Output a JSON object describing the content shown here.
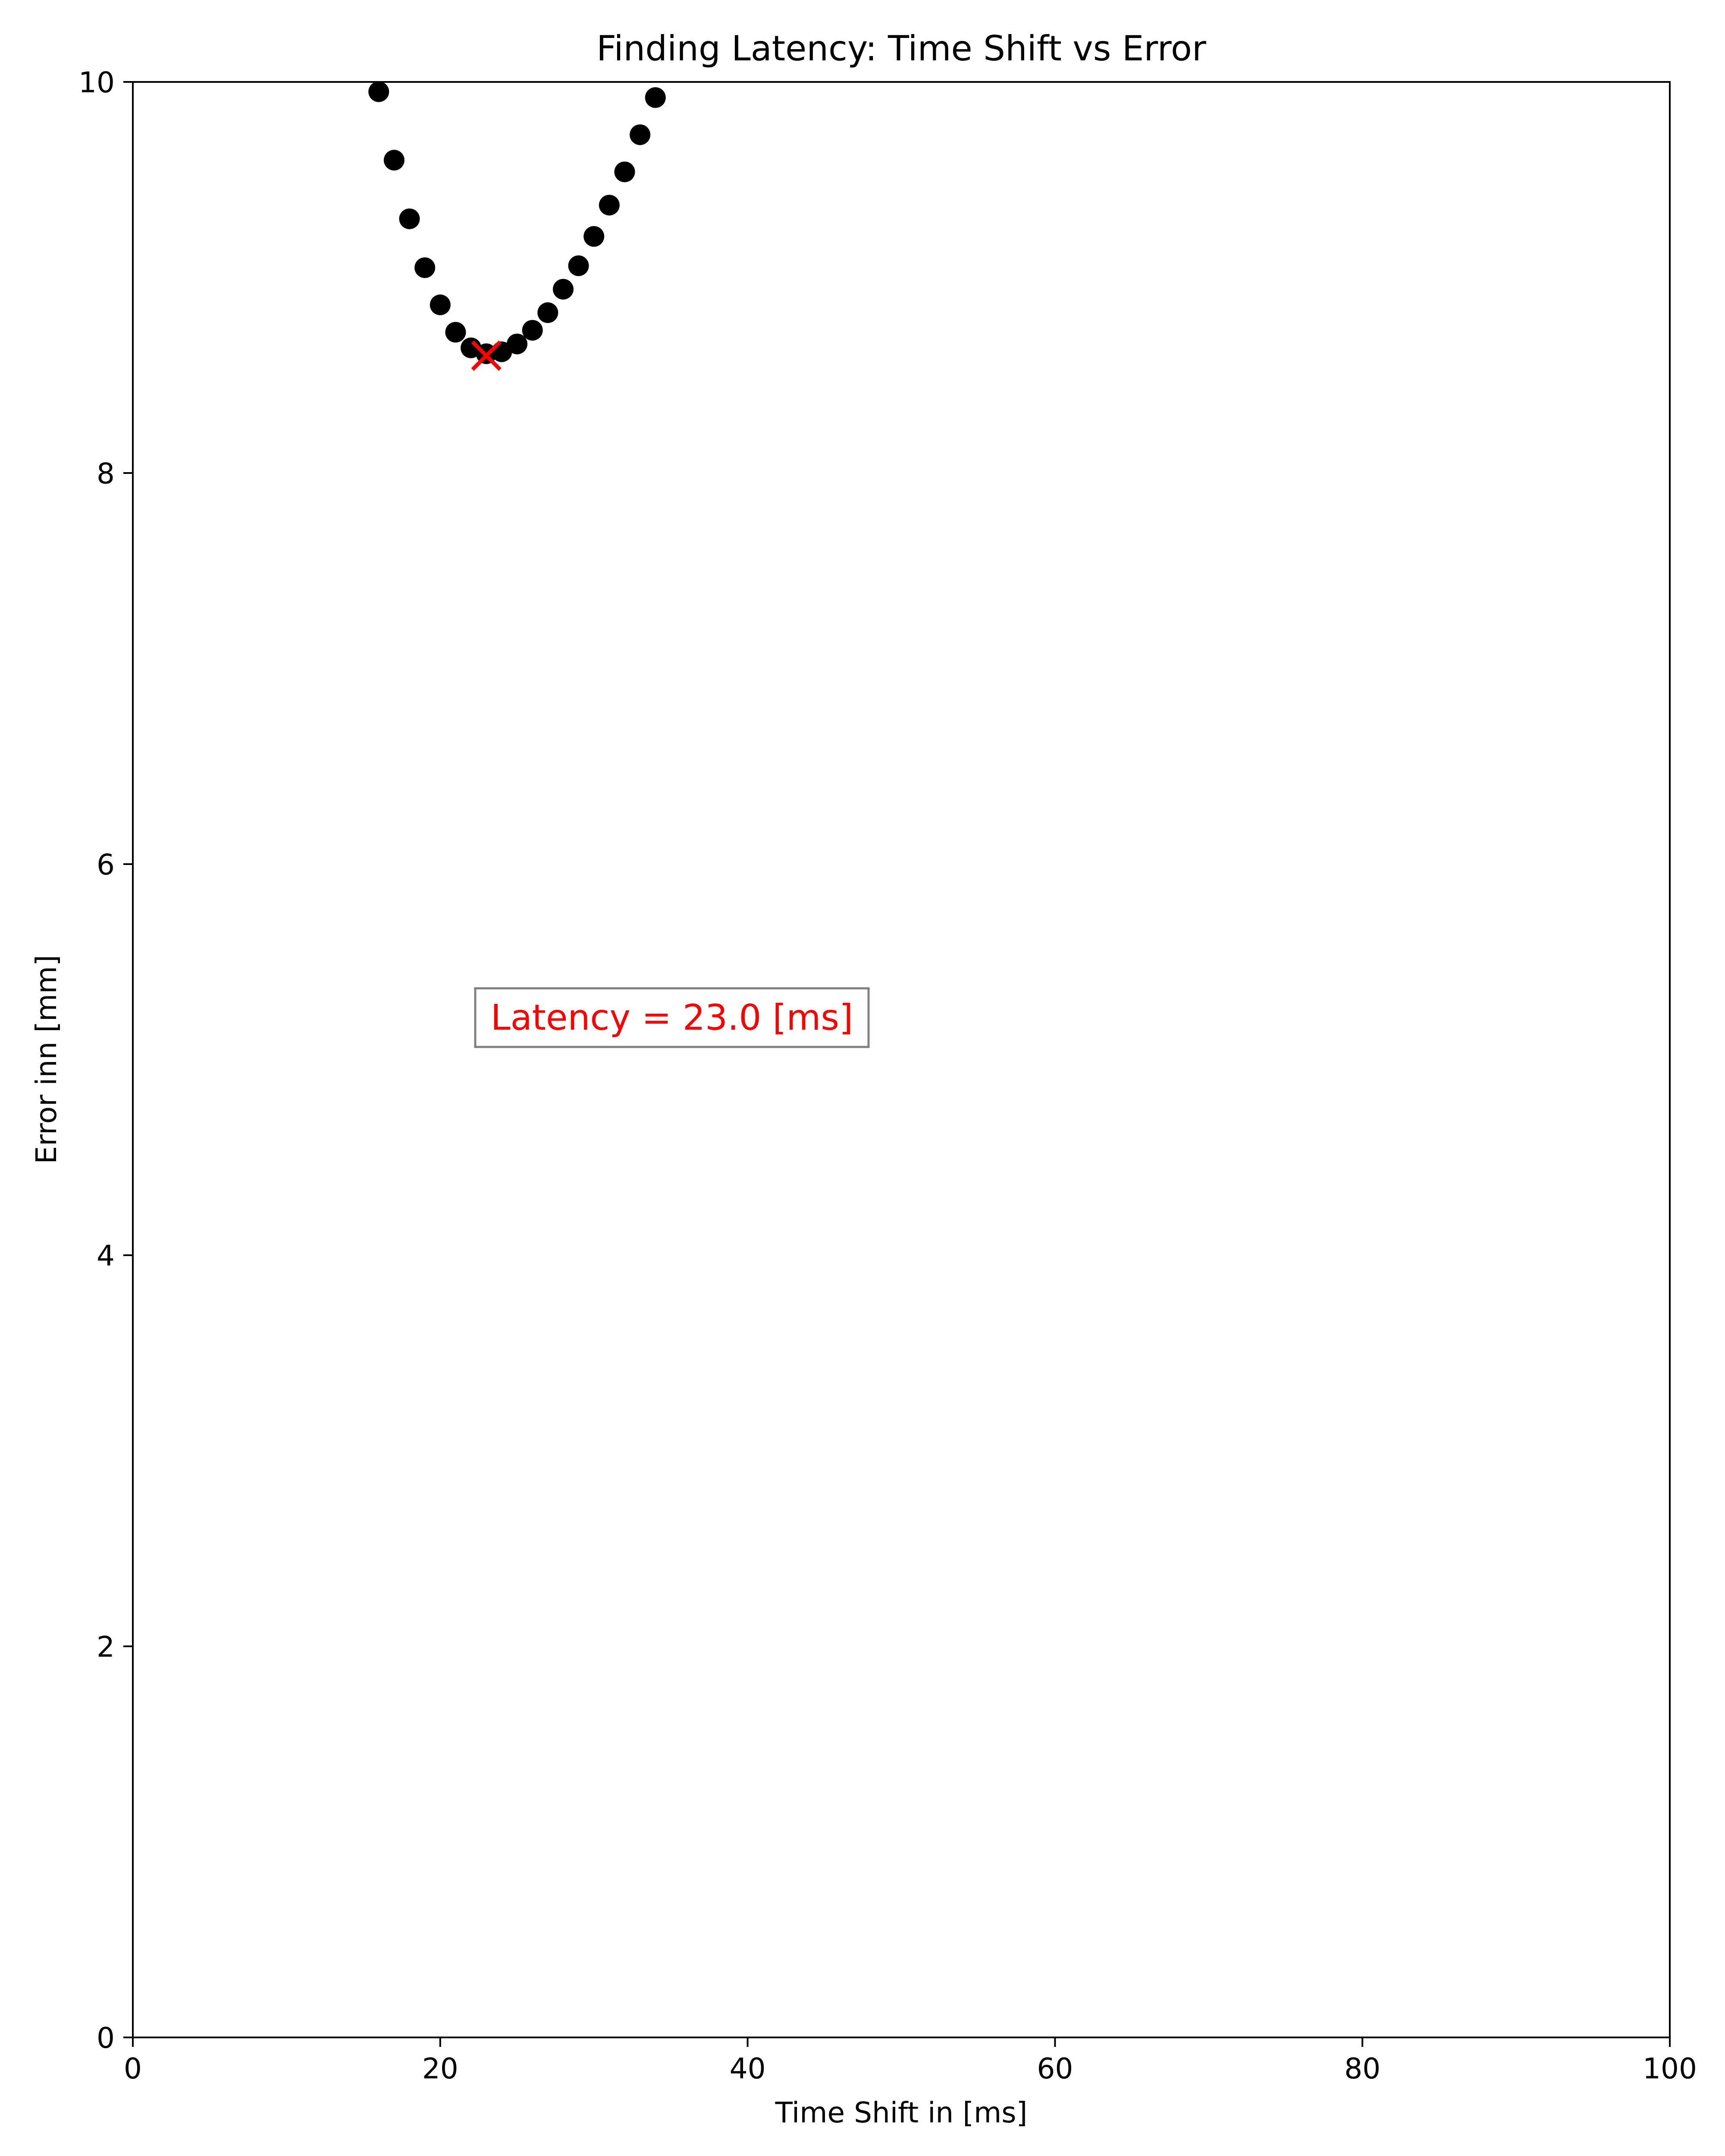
{
  "chart_data": {
    "type": "scatter",
    "title": "Finding Latency: Time Shift vs Error",
    "xlabel": "Time Shift in [ms]",
    "ylabel": "Error inn [mm]",
    "xlim": [
      0,
      100
    ],
    "ylim": [
      0,
      10
    ],
    "xticks": [
      0,
      20,
      40,
      60,
      80,
      100
    ],
    "yticks": [
      0,
      2,
      4,
      6,
      8,
      10
    ],
    "grid": false,
    "series": [
      {
        "color": "#000000",
        "marker": "circle",
        "points": [
          {
            "x": 16,
            "y": 9.95
          },
          {
            "x": 17,
            "y": 9.6
          },
          {
            "x": 18,
            "y": 9.3
          },
          {
            "x": 19,
            "y": 9.05
          },
          {
            "x": 20,
            "y": 8.86
          },
          {
            "x": 21,
            "y": 8.72
          },
          {
            "x": 22,
            "y": 8.64
          },
          {
            "x": 23,
            "y": 8.61
          },
          {
            "x": 24,
            "y": 8.62
          },
          {
            "x": 25,
            "y": 8.66
          },
          {
            "x": 26,
            "y": 8.73
          },
          {
            "x": 27,
            "y": 8.82
          },
          {
            "x": 28,
            "y": 8.94
          },
          {
            "x": 29,
            "y": 9.06
          },
          {
            "x": 30,
            "y": 9.21
          },
          {
            "x": 31,
            "y": 9.37
          },
          {
            "x": 32,
            "y": 9.54
          },
          {
            "x": 33,
            "y": 9.73
          },
          {
            "x": 34,
            "y": 9.92
          }
        ]
      }
    ],
    "minimum_marker": {
      "x": 23,
      "y": 8.6,
      "color": "#ff0000",
      "marker": "x"
    },
    "annotation": {
      "text": "Latency = 23.0 [ms]",
      "color": "#ff0000",
      "box_edge_color": "#808080"
    }
  }
}
